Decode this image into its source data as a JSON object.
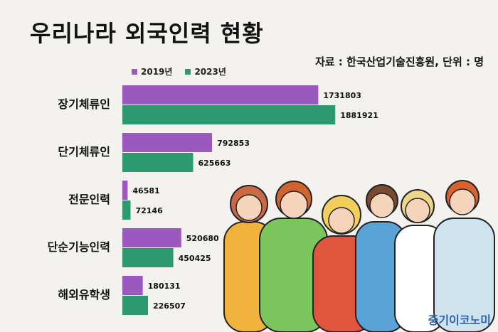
{
  "title": "우리나라 외국인력 현황",
  "source": "자료 : 한국산업기술진흥원, 단위 : 명",
  "brand": "중기이코노미",
  "colors": {
    "y2019": "#9b59c0",
    "y2023": "#2e9970",
    "background": "#f3f2ee"
  },
  "chart_data": {
    "type": "bar",
    "orientation": "horizontal",
    "categories": [
      "장기체류인",
      "단기체류인",
      "전문인력",
      "단순기능인력",
      "해외유학생"
    ],
    "series": [
      {
        "name": "2019년",
        "values": [
          1731803,
          792853,
          46581,
          520680,
          180131
        ]
      },
      {
        "name": "2023년",
        "values": [
          1881921,
          625663,
          72146,
          450425,
          226507
        ]
      }
    ],
    "title": "우리나라 외국인력 현황",
    "xlabel": "",
    "ylabel": "",
    "grid": false,
    "legend": "top-left"
  }
}
